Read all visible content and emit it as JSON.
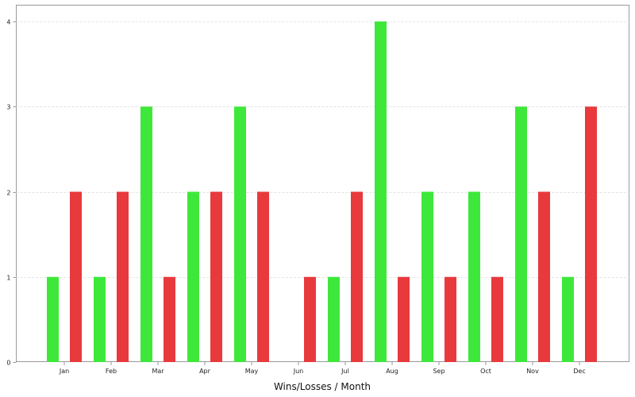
{
  "chart_data": {
    "type": "bar",
    "xlabel": "Wins/Losses / Month",
    "ylabel": "",
    "ylim": [
      0,
      4
    ],
    "yticks": [
      "0",
      "1",
      "2",
      "3",
      "4"
    ],
    "grid": true,
    "categories": [
      "Jan",
      "Feb",
      "Mar",
      "Apr",
      "May",
      "Jun",
      "Jul",
      "Aug",
      "Sep",
      "Oct",
      "Nov",
      "Dec"
    ],
    "series": [
      {
        "color": "#3ee83a",
        "values": [
          1,
          1,
          3,
          2,
          3,
          0,
          1,
          4,
          2,
          2,
          3,
          1
        ]
      },
      {
        "color": "#e8393c",
        "values": [
          2,
          2,
          1,
          2,
          2,
          1,
          2,
          1,
          1,
          1,
          2,
          3
        ]
      }
    ]
  }
}
